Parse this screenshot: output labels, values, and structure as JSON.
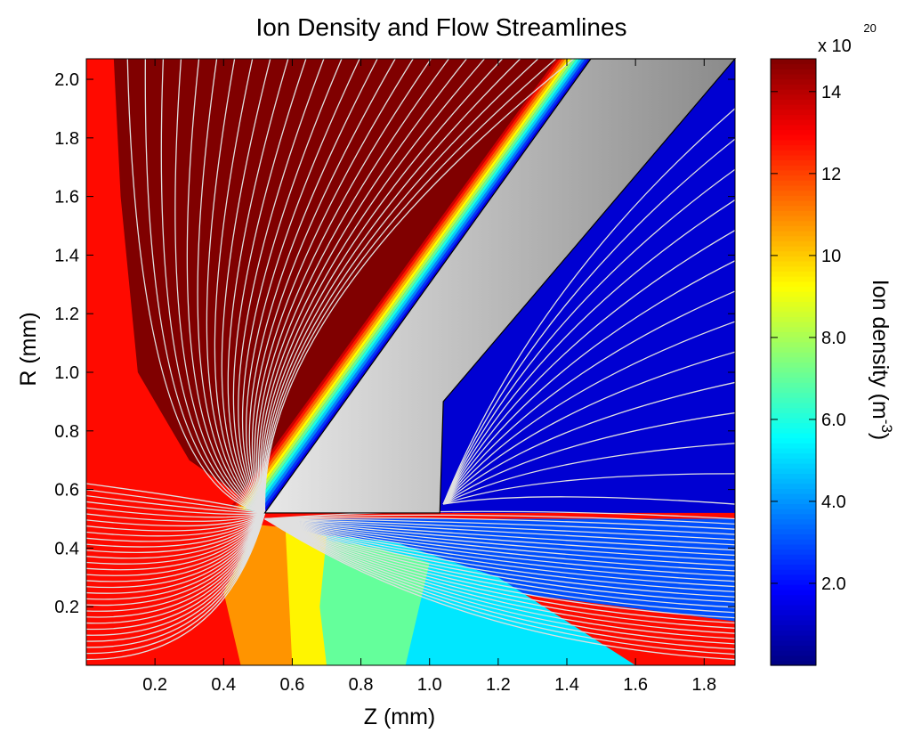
{
  "chart_data": {
    "type": "heatmap",
    "title": "Ion Density and Flow Streamlines",
    "xlabel": "Z (mm)",
    "ylabel": "R (mm)",
    "xlim": [
      0.0,
      1.89
    ],
    "ylim": [
      0.0,
      2.07
    ],
    "x_ticks": [
      0.2,
      0.4,
      0.6,
      0.8,
      1.0,
      1.2,
      1.4,
      1.6,
      1.8
    ],
    "x_tick_labels": [
      "0.2",
      "0.4",
      "0.6",
      "0.8",
      "1.0",
      "1.2",
      "1.4",
      "1.6",
      "1.8"
    ],
    "y_ticks": [
      0.2,
      0.4,
      0.6,
      0.8,
      1.0,
      1.2,
      1.4,
      1.6,
      1.8,
      2.0
    ],
    "y_tick_labels": [
      "0.2",
      "0.4",
      "0.6",
      "0.8",
      "1.0",
      "1.2",
      "1.4",
      "1.6",
      "1.8",
      "2.0"
    ],
    "colormap": "jet",
    "colorbar": {
      "label": "Ion density (m",
      "label_sup": "-3",
      "label_close": ")",
      "multiplier_base": "x 10",
      "multiplier_exp": "20",
      "range": [
        0.0,
        14.8
      ],
      "ticks": [
        2.0,
        4.0,
        6.0,
        8.0,
        10.0,
        12.0,
        14.0
      ],
      "tick_labels": [
        "2.0",
        "4.0",
        "6.0",
        "8.0",
        "10",
        "12",
        "14"
      ]
    },
    "electrode_polygon": [
      [
        0.52,
        0.52
      ],
      [
        1.03,
        0.52
      ],
      [
        1.04,
        0.9
      ],
      [
        1.89,
        2.07
      ],
      [
        1.47,
        2.07
      ]
    ],
    "streamline_color": "#e0e0e0",
    "electrode_gradient": [
      "#e8e8e8",
      "#8a8a8a"
    ],
    "grid": false
  }
}
